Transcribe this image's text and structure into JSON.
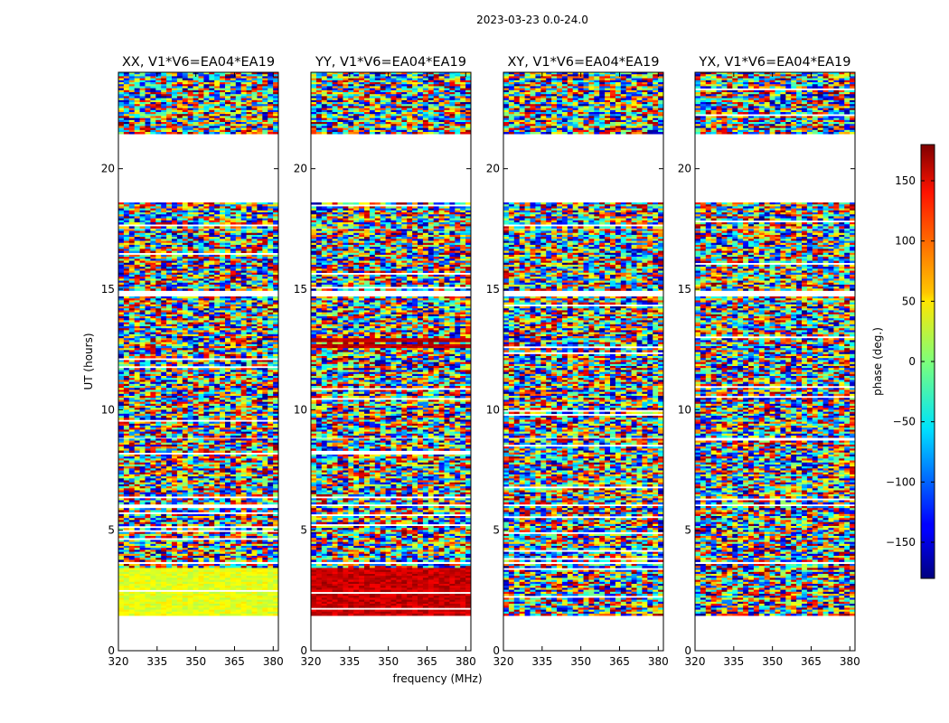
{
  "chart_data": {
    "type": "heatmap",
    "title": "2023-03-23 0.0-24.0",
    "xlabel": "frequency (MHz)",
    "ylabel": "UT (hours)",
    "xlim": [
      320,
      382
    ],
    "ylim": [
      0,
      24
    ],
    "xticks": [
      "320",
      "335",
      "350",
      "365",
      "380"
    ],
    "yticks": [
      "0",
      "5",
      "10",
      "15",
      "20"
    ],
    "panels": [
      {
        "title": "XX, V1*V6=EA04*EA19",
        "pol": "XX"
      },
      {
        "title": "YY, V1*V6=EA04*EA19",
        "pol": "YY"
      },
      {
        "title": "XY, V1*V6=EA04*EA19",
        "pol": "XY"
      },
      {
        "title": "YX, V1*V6=EA04*EA19",
        "pol": "YX"
      }
    ],
    "colorbar": {
      "label": "phase (deg.)",
      "range": [
        -180,
        180
      ],
      "ticks": [
        "150",
        "100",
        "50",
        "0",
        "−50",
        "−100",
        "−150"
      ],
      "colormap": "jet"
    },
    "data_time_ranges_hours": [
      [
        1.5,
        3.6
      ],
      [
        3.7,
        6.0
      ],
      [
        6.1,
        8.8
      ],
      [
        8.9,
        14.7
      ],
      [
        15.0,
        17.5
      ],
      [
        17.6,
        18.6
      ],
      [
        21.5,
        24.0
      ]
    ]
  }
}
